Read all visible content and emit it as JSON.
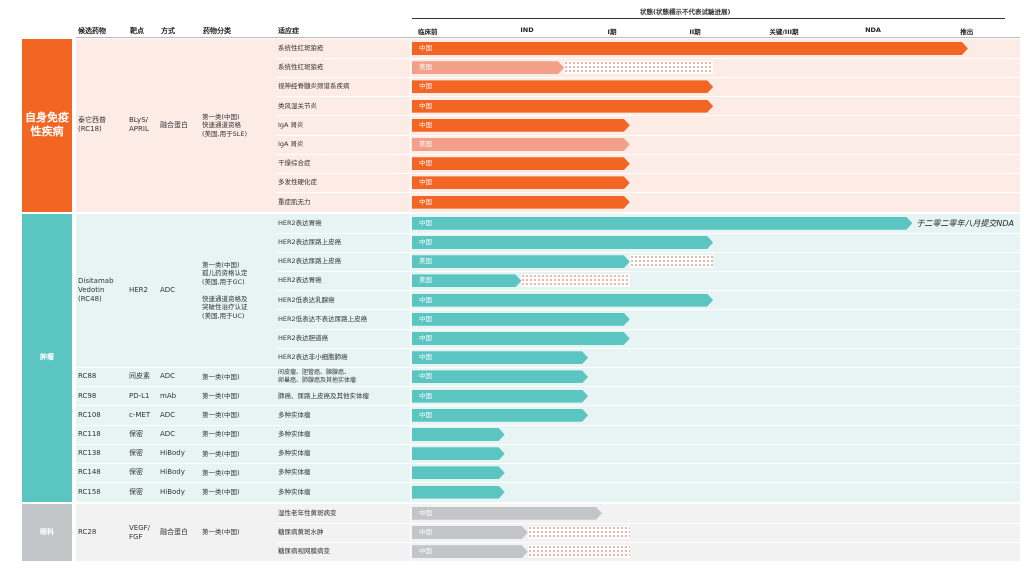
{
  "colors": {
    "autoimmune": "#f26522",
    "autoimmune_light": "#f3a08b",
    "autoimmune_bg": "#fdebe6",
    "oncology": "#5bc5c1",
    "oncology_bg": "#e6f5f4",
    "ophthalmology": "#c4c5c8",
    "ophthalmology_bg": "#f2f2f3"
  },
  "header": {
    "candidate": "候选药物",
    "target": "靶点",
    "modality": "方式",
    "drug_class": "药物分类",
    "indication": "适应症",
    "status_title": "状態(状態標示不代表试驗进展)",
    "stages": [
      "临床前",
      "IND",
      "I期",
      "II期",
      "关键/III期",
      "NDA",
      "推出"
    ]
  },
  "areas": [
    {
      "label": "自身免疫\n性疾病",
      "theme": "autoimmune",
      "programs": [
        {
          "name": "泰它西普\n(RC18)",
          "target": "BLyS/\nAPRIL",
          "modality": "融合蛋白",
          "designation": "第一类(中国)\n快速通道资格\n(美国,用于SLE)",
          "indications": [
            {
              "name": "系统性红斑狼疮",
              "region": "中国",
              "status": 6,
              "variant": "main"
            },
            {
              "name": "系统性红斑狼疮",
              "region": "美国",
              "status": 1.64,
              "planned": 3.25,
              "variant": "light"
            },
            {
              "name": "视神经脊髓炎频谱系疾病",
              "region": "中国",
              "status": 3.25,
              "variant": "main"
            },
            {
              "name": "类风湿关节炎",
              "region": "中国",
              "status": 3.25,
              "variant": "main"
            },
            {
              "name": "IgA 肾炎",
              "region": "中国",
              "status": 2.35,
              "variant": "main"
            },
            {
              "name": "IgA 肾炎",
              "region": "美国",
              "status": 2.35,
              "variant": "light"
            },
            {
              "name": "干燥综合症",
              "region": "中国",
              "status": 2.35,
              "variant": "main"
            },
            {
              "name": "多发性硬化症",
              "region": "中国",
              "status": 2.35,
              "variant": "main"
            },
            {
              "name": "重症肌无力",
              "region": "中国",
              "status": 2.35,
              "variant": "main"
            }
          ]
        }
      ]
    },
    {
      "label": "肿瘤",
      "theme": "oncology",
      "programs": [
        {
          "name": "Disitamab\nVedotin\n(RC48)",
          "target": "HER2",
          "modality": "ADC",
          "designation": "第一类(中国)\n孤儿药资格认定\n(美国,用于GC)\n\n快速通道资格及\n突破性治疗认证\n(美国,用于UC)",
          "indications": [
            {
              "name": "HER2表达胃癌",
              "region": "中国",
              "status": 5.4,
              "variant": "main",
              "note": "于二零二零年八月提交NDA"
            },
            {
              "name": "HER2表达尿路上皮癌",
              "region": "中国",
              "status": 3.25,
              "variant": "main"
            },
            {
              "name": "HER2表达尿路上皮癌",
              "region": "美国",
              "status": 2.35,
              "planned": 3.25,
              "variant": "light"
            },
            {
              "name": "HER2表达胃癌",
              "region": "美国",
              "status": 1.18,
              "planned": 2.35,
              "variant": "light"
            },
            {
              "name": "HER2低表达乳腺癌",
              "region": "中国",
              "status": 3.25,
              "variant": "main"
            },
            {
              "name": "HER2低表达不表达尿路上皮癌",
              "region": "中国",
              "status": 2.35,
              "variant": "main"
            },
            {
              "name": "HER2表达胆道癌",
              "region": "中国",
              "status": 2.35,
              "variant": "main"
            },
            {
              "name": "HER2表达非小细胞肺癌",
              "region": "中国",
              "status": 1.9,
              "variant": "main"
            }
          ]
        },
        {
          "name": "RC88",
          "target": "间皮素",
          "modality": "ADC",
          "designation": "第一类(中国)",
          "indications": [
            {
              "name": "间皮瘤、胆管癌、胰腺癌、\n卵巢癌、肺腺癌及其他实体瘤",
              "region": "中国",
              "status": 1.9,
              "variant": "main"
            }
          ]
        },
        {
          "name": "RC98",
          "target": "PD-L1",
          "modality": "mAb",
          "designation": "第一类(中国)",
          "indications": [
            {
              "name": "肺癌、尿路上皮癌及其他实体瘤",
              "region": "中国",
              "status": 1.9,
              "variant": "main"
            }
          ]
        },
        {
          "name": "RC108",
          "target": "c-MET",
          "modality": "ADC",
          "designation": "第一类(中国)",
          "indications": [
            {
              "name": "多种实体瘤",
              "region": "中国",
              "status": 1.9,
              "variant": "main"
            }
          ]
        },
        {
          "name": "RC118",
          "target": "保密",
          "modality": "ADC",
          "designation": "第一类(中国)",
          "indications": [
            {
              "name": "多种实体瘤",
              "region": "",
              "status": 1.0,
              "variant": "main"
            }
          ]
        },
        {
          "name": "RC138",
          "target": "保密",
          "modality": "HiBody",
          "designation": "第一类(中国)",
          "indications": [
            {
              "name": "多种实体瘤",
              "region": "",
              "status": 1.0,
              "variant": "main"
            }
          ]
        },
        {
          "name": "RC148",
          "target": "保密",
          "modality": "HiBody",
          "designation": "第一类(中国)",
          "indications": [
            {
              "name": "多种实体瘤",
              "region": "",
              "status": 1.0,
              "variant": "main"
            }
          ]
        },
        {
          "name": "RC158",
          "target": "保密",
          "modality": "HiBody",
          "designation": "第一类(中国)",
          "indications": [
            {
              "name": "多种实体瘤",
              "region": "",
              "status": 1.0,
              "variant": "main"
            }
          ]
        }
      ]
    },
    {
      "label": "眼科",
      "theme": "ophthalmology",
      "programs": [
        {
          "name": "RC28",
          "target": "VEGF/\nFGF",
          "modality": "融合蛋白",
          "designation": "第一类(中国)",
          "indications": [
            {
              "name": "湿性老年性黄斑病变",
              "region": "中国",
              "status": 2.05,
              "variant": "main"
            },
            {
              "name": "糖尿病黄斑水肿",
              "region": "中国",
              "status": 1.25,
              "planned": 2.35,
              "variant": "main"
            },
            {
              "name": "糖尿病视网膜病变",
              "region": "中国",
              "status": 1.25,
              "planned": 2.35,
              "variant": "main"
            }
          ]
        }
      ]
    }
  ]
}
